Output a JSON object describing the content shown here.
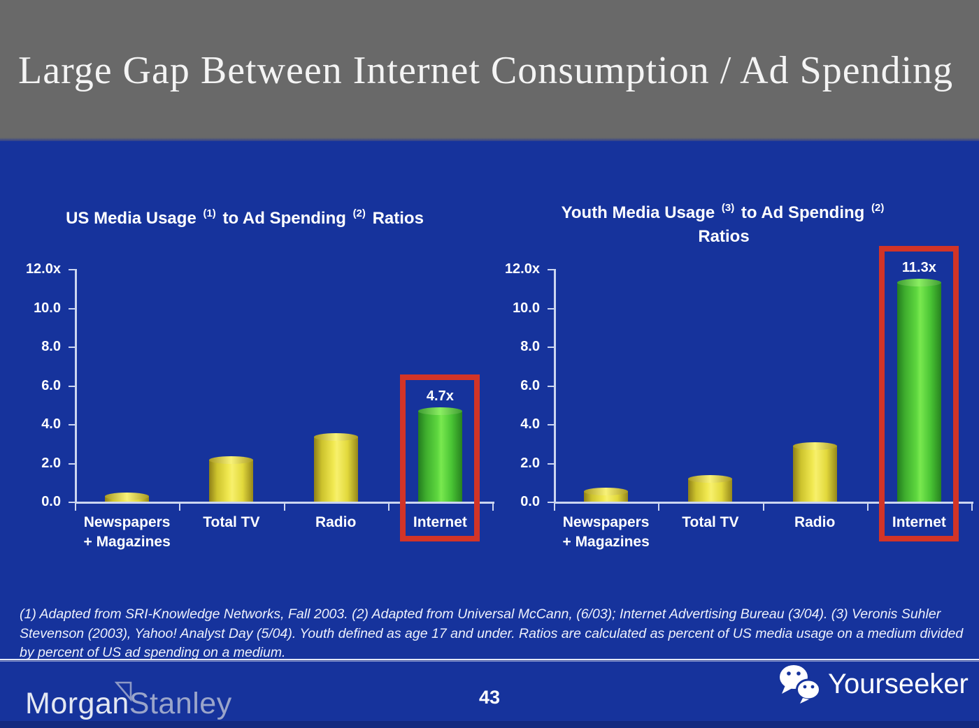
{
  "slide": {
    "title": "Large Gap Between Internet Consumption / Ad Spending",
    "page_number": "43",
    "footnote": "(1) Adapted from SRI-Knowledge Networks, Fall 2003.  (2) Adapted from Universal McCann, (6/03); Internet Advertising Bureau (3/04). (3) Veronis Suhler Stevenson (2003), Yahoo! Analyst Day (5/04).  Youth defined as age 17 and under.  Ratios are calculated as percent of US media usage on a medium divided by percent of US ad spending on a medium."
  },
  "branding": {
    "logo_part1": "Morgan",
    "logo_part2": "Stanley",
    "watermark_label": "Yourseeker"
  },
  "colors": {
    "header_gray": "#696969",
    "background_blue": "#16339c",
    "bar_yellow": "#f1e951",
    "bar_green": "#5ed73f",
    "highlight_red": "#d23427",
    "axis_line": "#ccd6f0"
  },
  "chart_data": [
    {
      "type": "bar",
      "title": "US Media Usage (1) to Ad Spending (2) Ratios",
      "title_parts": [
        {
          "t": "US Media Usage "
        },
        {
          "s": "(1)"
        },
        {
          "t": " to Ad Spending "
        },
        {
          "s": "(2)"
        },
        {
          "t": " Ratios"
        }
      ],
      "categories": [
        "Newspapers\n+ Magazines",
        "Total TV",
        "Radio",
        "Internet"
      ],
      "values": [
        0.3,
        2.15,
        3.35,
        4.7
      ],
      "bar_colors": [
        "yellow",
        "yellow",
        "yellow",
        "green"
      ],
      "ylim": [
        0,
        12
      ],
      "ytick_labels": [
        "12.0x",
        "10.0",
        "8.0",
        "6.0",
        "4.0",
        "2.0",
        "0.0"
      ],
      "grid": false,
      "highlight": {
        "index": 3,
        "label": "4.7x"
      }
    },
    {
      "type": "bar",
      "title": "Youth Media Usage (3) to Ad Spending (2) Ratios",
      "title_parts": [
        {
          "t": "Youth Media Usage "
        },
        {
          "s": "(3)"
        },
        {
          "t": " to Ad Spending "
        },
        {
          "s": "(2)"
        },
        {
          "br": true
        },
        {
          "t": "Ratios"
        }
      ],
      "categories": [
        "Newspapers\n+ Magazines",
        "Total TV",
        "Radio",
        "Internet"
      ],
      "values": [
        0.55,
        1.2,
        2.9,
        11.3
      ],
      "bar_colors": [
        "yellow",
        "yellow",
        "yellow",
        "green"
      ],
      "ylim": [
        0,
        12
      ],
      "ytick_labels": [
        "12.0x",
        "10.0",
        "8.0",
        "6.0",
        "4.0",
        "2.0",
        "0.0"
      ],
      "grid": false,
      "highlight": {
        "index": 3,
        "label": "11.3x"
      }
    }
  ]
}
